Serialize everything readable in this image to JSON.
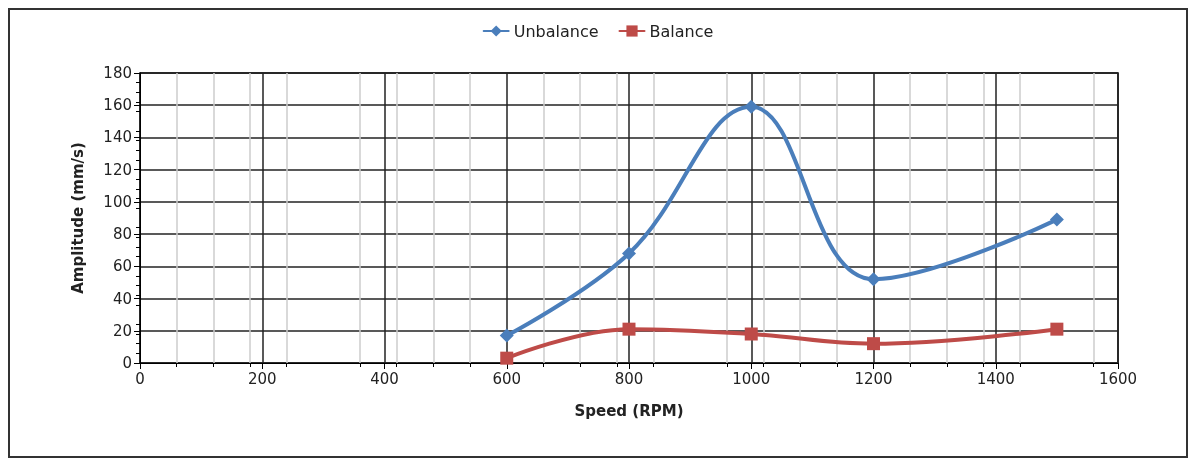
{
  "chart_data": {
    "type": "line",
    "xlabel": "Speed (RPM)",
    "ylabel": "Amplitude (mm/s)",
    "x": [
      600,
      800,
      1000,
      1200,
      1500
    ],
    "series": [
      {
        "name": "Unbalance",
        "color": "#4a7ebb",
        "marker": "diamond",
        "values": [
          17,
          68,
          159,
          52,
          89
        ]
      },
      {
        "name": "Balance",
        "color": "#be4b48",
        "marker": "square",
        "values": [
          3,
          21,
          18,
          12,
          21
        ]
      }
    ],
    "xlim": [
      0,
      1600
    ],
    "xticks": [
      0,
      200,
      400,
      600,
      800,
      1000,
      1200,
      1400,
      1600
    ],
    "ylim": [
      0,
      180
    ],
    "yticks": [
      0,
      20,
      40,
      60,
      80,
      100,
      120,
      140,
      160,
      180
    ],
    "grid": true,
    "legend": "top",
    "line_style": "solid"
  }
}
